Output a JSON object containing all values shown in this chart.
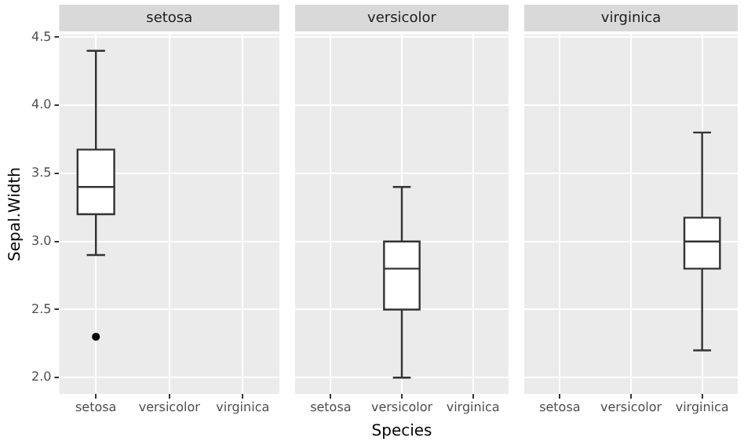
{
  "chart_data": [
    {
      "type": "box",
      "title": "setosa",
      "ylabel": "Sepal.Width",
      "categories": [
        "setosa",
        "versicolor",
        "virginica"
      ],
      "boxes": [
        {
          "low": 2.9,
          "q1": 3.2,
          "median": 3.4,
          "q3": 3.675,
          "high": 4.4,
          "outliers": [
            2.3
          ]
        },
        null,
        null
      ],
      "ylim": [
        1.88,
        4.52
      ],
      "yticks": [
        {
          "value": 2.0,
          "label": "2.0"
        },
        2.5,
        {
          "value": 3.0,
          "label": "3.0"
        },
        3.5,
        {
          "value": 4.0,
          "label": "4.0"
        },
        4.5
      ],
      "grid": true
    },
    {
      "type": "box",
      "title": "versicolor",
      "xlabel": "Species",
      "categories": [
        "setosa",
        "versicolor",
        "virginica"
      ],
      "boxes": [
        null,
        {
          "low": 2.0,
          "q1": 2.5,
          "median": 2.8,
          "q3": 3.0,
          "high": 3.4
        },
        null
      ],
      "ylim": [
        1.88,
        4.52
      ],
      "yticks": [
        2,
        2.5,
        3,
        3.5,
        4,
        4.5
      ],
      "grid": true,
      "tick_labels": "x"
    },
    {
      "type": "box",
      "title": "virginica",
      "categories": [
        "setosa",
        "versicolor",
        "virginica"
      ],
      "boxes": [
        null,
        null,
        {
          "low": 2.2,
          "q1": 2.8,
          "median": 3.0,
          "q3": 3.175,
          "high": 3.8
        }
      ],
      "ylim": [
        1.88,
        4.52
      ],
      "yticks": [
        2,
        2.5,
        3,
        3.5,
        4,
        4.5
      ],
      "grid": true,
      "tick_labels": "x"
    }
  ]
}
